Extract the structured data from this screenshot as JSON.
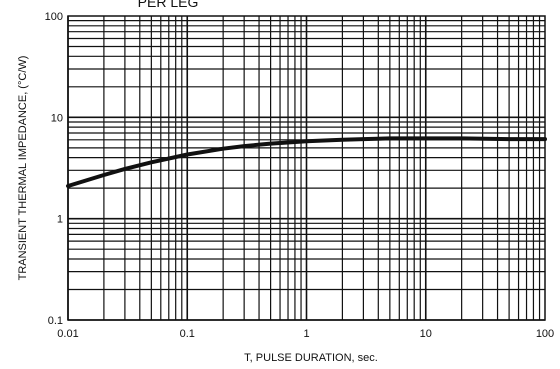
{
  "chart_data": {
    "type": "line",
    "title": "PER LEG",
    "xlabel": "T, PULSE DURATION, sec.",
    "ylabel": "TRANSIENT THERMAL IMPEDANCE, (°C/W)",
    "x_scale": "log",
    "y_scale": "log",
    "xlim": [
      0.01,
      100
    ],
    "ylim": [
      0.1,
      100
    ],
    "x_ticks": [
      {
        "value": 0.01,
        "label": "0.01"
      },
      {
        "value": 0.1,
        "label": "0.1"
      },
      {
        "value": 1,
        "label": "1"
      },
      {
        "value": 10,
        "label": "10"
      },
      {
        "value": 100,
        "label": "100"
      }
    ],
    "y_ticks": [
      {
        "value": 0.1,
        "label": "0.1"
      },
      {
        "value": 1,
        "label": "1"
      },
      {
        "value": 10,
        "label": "10"
      },
      {
        "value": 100,
        "label": "100"
      }
    ],
    "grid": true,
    "series": [
      {
        "x": [
          0.01,
          0.02,
          0.03,
          0.05,
          0.1,
          0.2,
          0.3,
          0.5,
          1,
          2,
          3,
          5,
          10,
          20,
          50,
          100
        ],
        "y": [
          2.1,
          2.7,
          3.1,
          3.6,
          4.3,
          4.9,
          5.2,
          5.5,
          5.8,
          6.0,
          6.1,
          6.2,
          6.2,
          6.2,
          6.1,
          6.1
        ]
      }
    ],
    "colors": {
      "line": "#111111",
      "grid": "#111111",
      "background": "#ffffff"
    }
  }
}
